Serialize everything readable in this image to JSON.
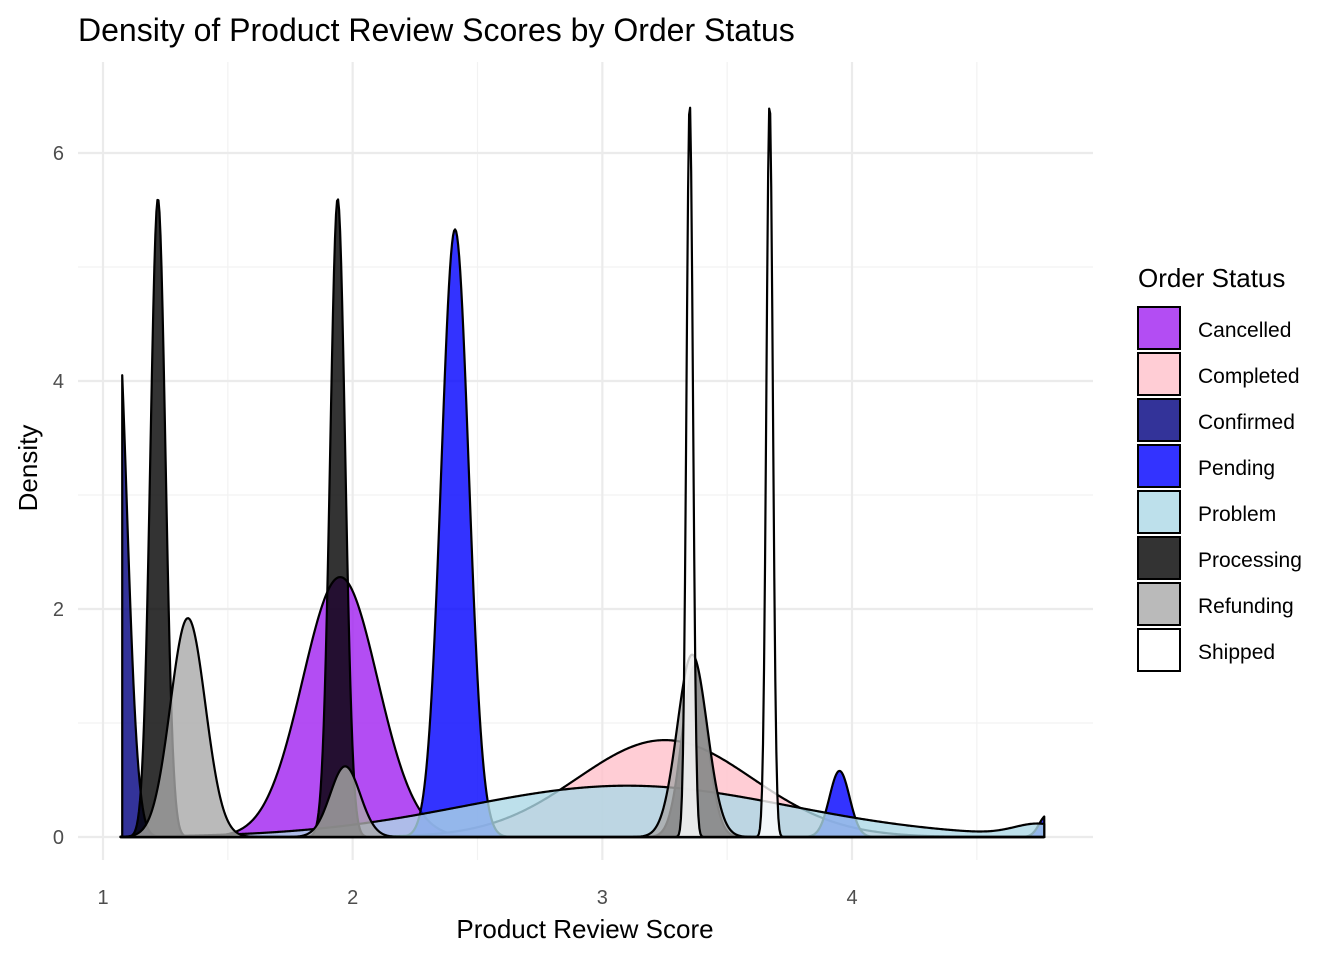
{
  "chart_data": {
    "type": "area",
    "subtype": "density",
    "title": "Density of Product Review Scores by Order Status",
    "xlabel": "Product Review Score",
    "ylabel": "Density",
    "xlim": [
      1.07,
      4.77
    ],
    "ylim": [
      0,
      6.5
    ],
    "x_ticks": [
      1,
      2,
      3,
      4
    ],
    "y_ticks": [
      0,
      2,
      4,
      6
    ],
    "grid": true,
    "fill_opacity": 0.8,
    "legend": {
      "title": "Order Status",
      "position": "right"
    },
    "series": [
      {
        "name": "Cancelled",
        "color": "#a020f0",
        "components": [
          {
            "mean": 1.95,
            "sd": 0.15,
            "peak": 2.28
          }
        ],
        "x_range": [
          1.07,
          4.77
        ]
      },
      {
        "name": "Completed",
        "color": "#ffc0cb",
        "components": [
          {
            "mean": 3.25,
            "sd": 0.35,
            "peak": 0.85
          }
        ],
        "x_range": [
          1.07,
          4.77
        ]
      },
      {
        "name": "Confirmed",
        "color": "#000080",
        "components": [
          {
            "mean": 1.05,
            "sd": 0.045,
            "peak": 4.85
          }
        ],
        "x_range": [
          1.077,
          4.77
        ]
      },
      {
        "name": "Pending",
        "color": "#0000ff",
        "components": [
          {
            "mean": 2.41,
            "sd": 0.055,
            "peak": 5.33
          },
          {
            "mean": 3.95,
            "sd": 0.04,
            "peak": 0.58
          },
          {
            "mean": 4.78,
            "sd": 0.03,
            "peak": 0.19
          }
        ],
        "x_range": [
          1.07,
          4.77
        ]
      },
      {
        "name": "Problem",
        "color": "#add8e6",
        "components": [
          {
            "mean": 3.1,
            "sd": 0.65,
            "peak": 0.45
          },
          {
            "mean": 4.75,
            "sd": 0.1,
            "peak": 0.1
          }
        ],
        "x_range": [
          1.07,
          4.77
        ]
      },
      {
        "name": "Processing",
        "color": "#000000",
        "components": [
          {
            "mean": 1.22,
            "sd": 0.03,
            "peak": 5.6
          },
          {
            "mean": 1.94,
            "sd": 0.03,
            "peak": 5.6
          },
          {
            "mean": 3.37,
            "sd": 0.05,
            "peak": 1.5
          }
        ],
        "x_range": [
          1.07,
          4.77
        ]
      },
      {
        "name": "Refunding",
        "color": "#a9a9a9",
        "components": [
          {
            "mean": 1.34,
            "sd": 0.07,
            "peak": 1.92
          },
          {
            "mean": 1.97,
            "sd": 0.06,
            "peak": 0.62
          },
          {
            "mean": 3.36,
            "sd": 0.06,
            "peak": 1.6
          }
        ],
        "x_range": [
          1.07,
          4.77
        ]
      },
      {
        "name": "Shipped",
        "color": "#ffffff",
        "components": [
          {
            "mean": 3.35,
            "sd": 0.013,
            "peak": 6.45
          },
          {
            "mean": 3.67,
            "sd": 0.013,
            "peak": 6.45
          }
        ],
        "x_range": [
          1.07,
          4.77
        ]
      }
    ]
  }
}
